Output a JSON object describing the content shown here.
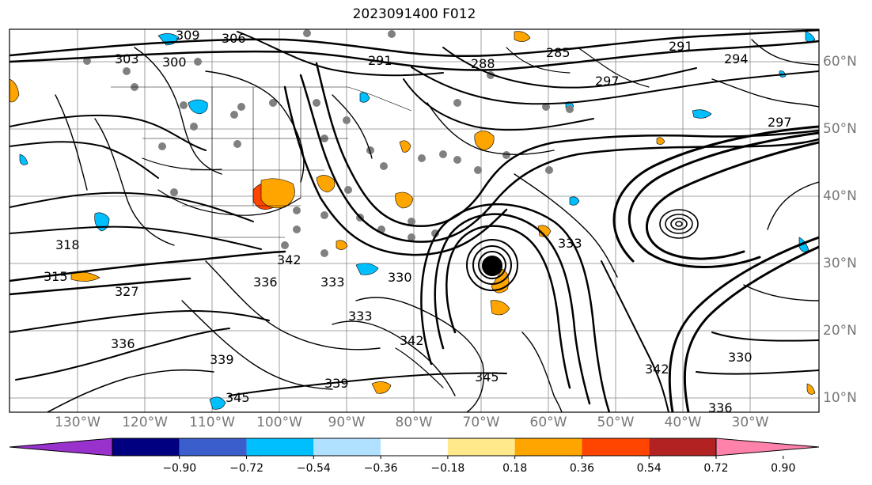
{
  "title": "2023091400 F012",
  "longitude_labels": [
    "130°W",
    "120°W",
    "110°W",
    "100°W",
    "90°W",
    "80°W",
    "70°W",
    "60°W",
    "50°W",
    "40°W",
    "30°W"
  ],
  "latitude_labels": [
    "60°N",
    "50°N",
    "40°N",
    "30°N",
    "20°N",
    "10°N"
  ],
  "contour_labels": [
    "309",
    "306",
    "303",
    "300",
    "291",
    "288",
    "285",
    "297",
    "291",
    "294",
    "297",
    "318",
    "315",
    "327",
    "342",
    "336",
    "333",
    "330",
    "345",
    "339",
    "336",
    "333",
    "342",
    "339",
    "345",
    "342",
    "333",
    "330",
    "336"
  ],
  "colorbar": {
    "ticks": [
      "−0.90",
      "−0.72",
      "−0.54",
      "−0.36",
      "−0.18",
      "0.18",
      "0.36",
      "0.54",
      "0.72",
      "0.90"
    ],
    "colors": [
      "#9932cc",
      "#000080",
      "#3a5fcd",
      "#00bfff",
      "#b0e2ff",
      "#ffffff",
      "#ffe98a",
      "#ffa500",
      "#ff4500",
      "#b22222",
      "#ff82ab"
    ],
    "extend": "both"
  },
  "legend_placement": "bottom",
  "grid": true
}
